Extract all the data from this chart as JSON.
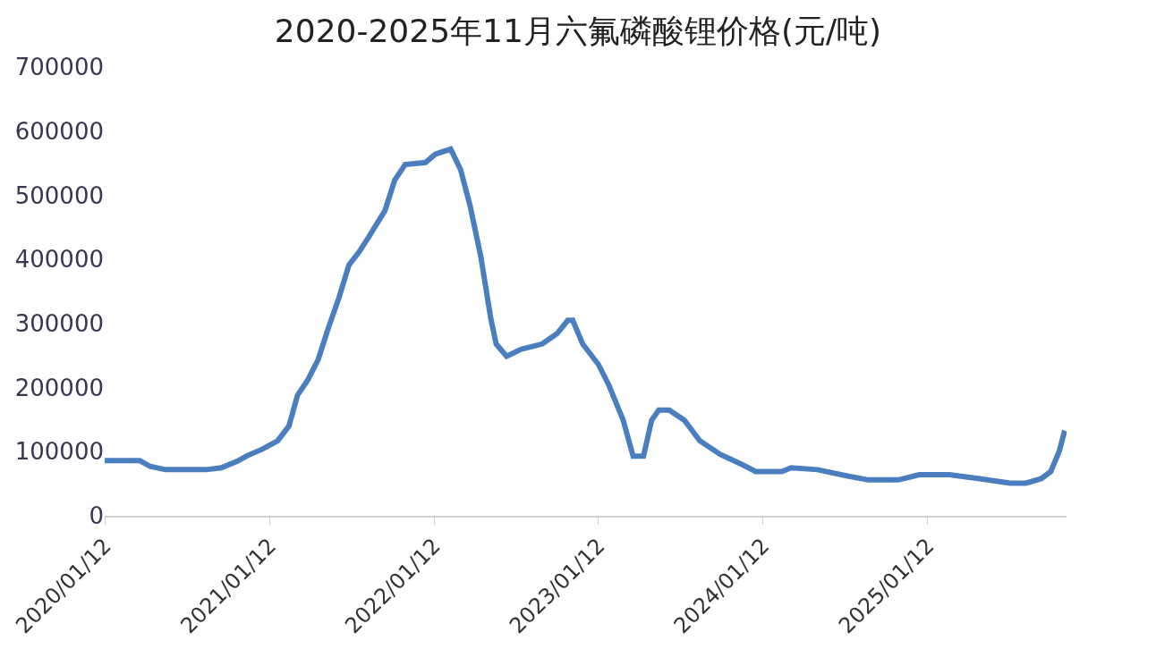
{
  "chart_data": {
    "type": "line",
    "title": "2020-2025年11月六氟磷酸锂价格(元/吨)",
    "x": [
      "2020-01-12",
      "2020-03-30",
      "2020-04-22",
      "2020-05-26",
      "2020-08-25",
      "2020-09-27",
      "2020-11-01",
      "2020-11-24",
      "2020-12-27",
      "2021-01-30",
      "2021-02-24",
      "2021-03-15",
      "2021-04-07",
      "2021-04-30",
      "2021-05-22",
      "2021-06-15",
      "2021-07-07",
      "2021-07-30",
      "2021-08-21",
      "2021-09-25",
      "2021-10-17",
      "2021-11-09",
      "2021-12-24",
      "2022-01-15",
      "2022-02-18",
      "2022-03-12",
      "2022-04-02",
      "2022-04-26",
      "2022-05-18",
      "2022-05-30",
      "2022-06-22",
      "2022-07-25",
      "2022-09-09",
      "2022-10-12",
      "2022-11-05",
      "2022-11-16",
      "2022-12-08",
      "2023-01-12",
      "2023-02-04",
      "2023-03-08",
      "2023-03-30",
      "2023-04-22",
      "2023-05-10",
      "2023-05-26",
      "2023-06-18",
      "2023-07-22",
      "2023-08-25",
      "2023-10-09",
      "2023-11-24",
      "2023-12-27",
      "2024-02-23",
      "2024-03-15",
      "2024-05-12",
      "2024-07-18",
      "2024-09-02",
      "2024-11-08",
      "2024-12-24",
      "2025-03-01",
      "2025-05-07",
      "2025-07-14",
      "2025-08-18",
      "2025-09-21",
      "2025-10-12",
      "2025-10-31",
      "2025-11-12"
    ],
    "series": [
      {
        "color": "#4a7ebf",
        "values": [
          86000,
          86000,
          77000,
          72000,
          72000,
          75000,
          85000,
          94000,
          104000,
          117000,
          140000,
          188000,
          212000,
          244000,
          292000,
          340000,
          391000,
          412000,
          436000,
          476000,
          524000,
          548000,
          551000,
          564000,
          572000,
          540000,
          484000,
          404000,
          308000,
          268000,
          249000,
          260000,
          268000,
          284000,
          305000,
          305000,
          268000,
          236000,
          204000,
          149000,
          93000,
          93000,
          149000,
          165000,
          165000,
          149000,
          117000,
          96000,
          81000,
          69000,
          69000,
          75000,
          72000,
          62000,
          56000,
          56000,
          64000,
          64000,
          58000,
          51000,
          51000,
          58000,
          69000,
          101000,
          133000
        ]
      }
    ],
    "xlim": [
      "2020-01-12",
      "2025-11-16"
    ],
    "xticks": [
      {
        "value": "2020-01-12",
        "label": "2020/01/12"
      },
      {
        "value": "2021-01-12",
        "label": "2021/01/12"
      },
      {
        "value": "2022-01-12",
        "label": "2022/01/12"
      },
      {
        "value": "2023-01-12",
        "label": "2023/01/12"
      },
      {
        "value": "2024-01-12",
        "label": "2024/01/12"
      },
      {
        "value": "2025-01-12",
        "label": "2025/01/12"
      }
    ],
    "ylim": [
      0,
      700000
    ],
    "yticks": [
      0,
      100000,
      200000,
      300000,
      400000,
      500000,
      600000,
      700000
    ],
    "marker": "none",
    "line_style": "solid"
  }
}
